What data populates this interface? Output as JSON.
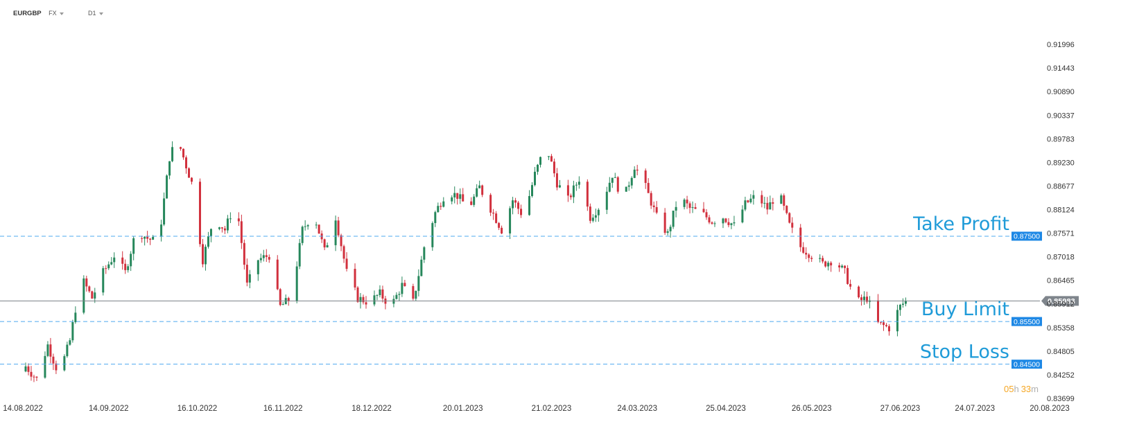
{
  "header": {
    "symbol": "EURGBP",
    "market": "FX",
    "interval": "D1"
  },
  "colors": {
    "up": "#26875b",
    "down": "#d1303d",
    "level_line": "#4da8ef",
    "level_tag": "#1e88e5",
    "current_line": "#7a7f86",
    "current_tag": "#7f858c",
    "annotation": "#1f9bd8",
    "timer": "#f5a623"
  },
  "timer": {
    "hours": "05",
    "hours_unit": "h",
    "minutes": "33",
    "minutes_unit": "m"
  },
  "chart_data": {
    "type": "candlestick",
    "symbol": "EURGBP",
    "timeframe": "D1",
    "ylim": [
      0.8365,
      0.9255
    ],
    "y_ticks": [
      "0.91996",
      "0.91443",
      "0.90890",
      "0.90337",
      "0.89783",
      "0.89230",
      "0.88677",
      "0.88124",
      "0.87571",
      "0.87018",
      "0.86465",
      "0.85912",
      "0.85358",
      "0.84805",
      "0.84252",
      "0.83699"
    ],
    "x_ticks": [
      "14.08.2022",
      "14.09.2022",
      "16.10.2022",
      "16.11.2022",
      "18.12.2022",
      "20.01.2023",
      "21.02.2023",
      "24.03.2023",
      "25.04.2023",
      "26.05.2023",
      "27.06.2023",
      "24.07.2023",
      "20.08.2023"
    ],
    "current_price": {
      "value": 0.85983,
      "label": "0.85983"
    },
    "levels": [
      {
        "name": "Take Profit",
        "value": 0.875,
        "label": "0.87500"
      },
      {
        "name": "Buy Limit",
        "value": 0.855,
        "label": "0.85500"
      },
      {
        "name": "Stop Loss",
        "value": 0.845,
        "label": "0.84500"
      }
    ],
    "series": [
      {
        "x": "2022-08-15",
        "close": 0.8445
      },
      {
        "x": "2022-08-19",
        "close": 0.8415
      },
      {
        "x": "2022-08-23",
        "close": 0.8495
      },
      {
        "x": "2022-08-27",
        "close": 0.8425
      },
      {
        "x": "2022-08-31",
        "close": 0.8505
      },
      {
        "x": "2022-09-04",
        "close": 0.8655
      },
      {
        "x": "2022-09-08",
        "close": 0.8605
      },
      {
        "x": "2022-09-12",
        "close": 0.8665
      },
      {
        "x": "2022-09-16",
        "close": 0.8705
      },
      {
        "x": "2022-09-20",
        "close": 0.8665
      },
      {
        "x": "2022-09-24",
        "close": 0.8765
      },
      {
        "x": "2022-09-28",
        "close": 0.8745
      },
      {
        "x": "2022-10-02",
        "close": 0.8735
      },
      {
        "x": "2022-10-06",
        "close": 0.8935
      },
      {
        "x": "2022-10-09",
        "close": 0.8985
      },
      {
        "x": "2022-10-10",
        "close": 0.8955
      },
      {
        "x": "2022-10-14",
        "close": 0.8875
      },
      {
        "x": "2022-10-18",
        "close": 0.8695
      },
      {
        "x": "2022-10-22",
        "close": 0.8795
      },
      {
        "x": "2022-10-26",
        "close": 0.8765
      },
      {
        "x": "2022-10-30",
        "close": 0.8835
      },
      {
        "x": "2022-11-03",
        "close": 0.8635
      },
      {
        "x": "2022-11-07",
        "close": 0.8695
      },
      {
        "x": "2022-11-11",
        "close": 0.8705
      },
      {
        "x": "2022-11-15",
        "close": 0.8585
      },
      {
        "x": "2022-11-19",
        "close": 0.8605
      },
      {
        "x": "2022-11-23",
        "close": 0.8765
      },
      {
        "x": "2022-11-27",
        "close": 0.8805
      },
      {
        "x": "2022-12-01",
        "close": 0.8715
      },
      {
        "x": "2022-12-05",
        "close": 0.8795
      },
      {
        "x": "2022-12-09",
        "close": 0.8665
      },
      {
        "x": "2022-12-13",
        "close": 0.8605
      },
      {
        "x": "2022-12-17",
        "close": 0.8595
      },
      {
        "x": "2022-12-21",
        "close": 0.8615
      },
      {
        "x": "2022-12-25",
        "close": 0.8585
      },
      {
        "x": "2022-12-29",
        "close": 0.8635
      },
      {
        "x": "2023-01-02",
        "close": 0.8595
      },
      {
        "x": "2023-01-06",
        "close": 0.8725
      },
      {
        "x": "2023-01-10",
        "close": 0.8805
      },
      {
        "x": "2023-01-14",
        "close": 0.8855
      },
      {
        "x": "2023-01-18",
        "close": 0.8845
      },
      {
        "x": "2023-01-22",
        "close": 0.8815
      },
      {
        "x": "2023-01-26",
        "close": 0.8865
      },
      {
        "x": "2023-01-30",
        "close": 0.8815
      },
      {
        "x": "2023-02-03",
        "close": 0.8765
      },
      {
        "x": "2023-02-07",
        "close": 0.8835
      },
      {
        "x": "2023-02-11",
        "close": 0.8795
      },
      {
        "x": "2023-02-15",
        "close": 0.8895
      },
      {
        "x": "2023-02-19",
        "close": 0.8965
      },
      {
        "x": "2023-02-23",
        "close": 0.8875
      },
      {
        "x": "2023-02-27",
        "close": 0.8835
      },
      {
        "x": "2023-03-03",
        "close": 0.8885
      },
      {
        "x": "2023-03-07",
        "close": 0.8795
      },
      {
        "x": "2023-03-11",
        "close": 0.8825
      },
      {
        "x": "2023-03-15",
        "close": 0.8895
      },
      {
        "x": "2023-03-19",
        "close": 0.8835
      },
      {
        "x": "2023-03-23",
        "close": 0.8915
      },
      {
        "x": "2023-03-27",
        "close": 0.8865
      },
      {
        "x": "2023-03-31",
        "close": 0.8795
      },
      {
        "x": "2023-04-04",
        "close": 0.8755
      },
      {
        "x": "2023-04-08",
        "close": 0.8845
      },
      {
        "x": "2023-04-12",
        "close": 0.8815
      },
      {
        "x": "2023-04-16",
        "close": 0.8805
      },
      {
        "x": "2023-04-20",
        "close": 0.8785
      },
      {
        "x": "2023-04-24",
        "close": 0.8795
      },
      {
        "x": "2023-04-28",
        "close": 0.8775
      },
      {
        "x": "2023-05-02",
        "close": 0.8825
      },
      {
        "x": "2023-05-06",
        "close": 0.8845
      },
      {
        "x": "2023-05-10",
        "close": 0.8815
      },
      {
        "x": "2023-05-14",
        "close": 0.8855
      },
      {
        "x": "2023-05-18",
        "close": 0.8775
      },
      {
        "x": "2023-05-22",
        "close": 0.8725
      },
      {
        "x": "2023-05-26",
        "close": 0.8705
      },
      {
        "x": "2023-05-30",
        "close": 0.8685
      },
      {
        "x": "2023-06-03",
        "close": 0.8695
      },
      {
        "x": "2023-06-07",
        "close": 0.8665
      },
      {
        "x": "2023-06-11",
        "close": 0.8595
      },
      {
        "x": "2023-06-15",
        "close": 0.8605
      },
      {
        "x": "2023-06-19",
        "close": 0.8545
      },
      {
        "x": "2023-06-23",
        "close": 0.8535
      },
      {
        "x": "2023-06-27",
        "close": 0.8585
      },
      {
        "x": "2023-06-29",
        "close": 0.8598
      }
    ]
  }
}
